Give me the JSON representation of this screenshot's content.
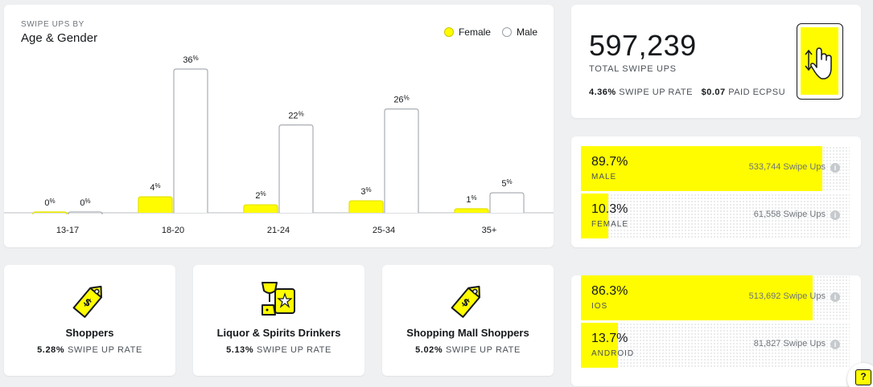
{
  "chart_data": {
    "type": "bar",
    "title": "Age & Gender",
    "subtitle": "SWIPE UPS BY",
    "categories": [
      "13-17",
      "18-20",
      "21-24",
      "25-34",
      "35+"
    ],
    "series": [
      {
        "name": "Female",
        "values": [
          0,
          4,
          2,
          3,
          1
        ],
        "labels": [
          "0",
          "4",
          "2",
          "3",
          "1"
        ]
      },
      {
        "name": "Male",
        "values": [
          0,
          36,
          22,
          26,
          5
        ],
        "labels": [
          "0",
          "36",
          "22",
          "26",
          "5"
        ]
      }
    ],
    "unit": "%",
    "ylim": [
      0,
      36
    ],
    "legend": "top-right",
    "colors": {
      "Female": "#fffc00",
      "Male": "#ffffff"
    }
  },
  "total": {
    "value": "597,239",
    "label": "TOTAL SWIPE UPS",
    "swipe_rate_value": "4.36%",
    "swipe_rate_label": "SWIPE UP RATE",
    "ecpsu_value": "$0.07",
    "ecpsu_label": "PAID ECPSU"
  },
  "gender": [
    {
      "pct": "89.7%",
      "name": "MALE",
      "count": "533,744 Swipe Ups",
      "fraction": 0.897
    },
    {
      "pct": "10.3%",
      "name": "FEMALE",
      "count": "61,558 Swipe Ups",
      "fraction": 0.103
    }
  ],
  "os": [
    {
      "pct": "86.3%",
      "name": "IOS",
      "count": "513,692 Swipe Ups",
      "fraction": 0.863
    },
    {
      "pct": "13.7%",
      "name": "ANDROID",
      "count": "81,827 Swipe Ups",
      "fraction": 0.137
    }
  ],
  "audiences": [
    {
      "name": "Shoppers",
      "rate_value": "5.28%",
      "rate_label": "SWIPE UP RATE",
      "icon": "price-tag-icon"
    },
    {
      "name": "Liquor & Spirits Drinkers",
      "rate_value": "5.13%",
      "rate_label": "SWIPE UP RATE",
      "icon": "liquor-icon"
    },
    {
      "name": "Shopping Mall Shoppers",
      "rate_value": "5.02%",
      "rate_label": "SWIPE UP RATE",
      "icon": "price-tag-icon"
    }
  ],
  "info_glyph": "i",
  "help_glyph": "?"
}
